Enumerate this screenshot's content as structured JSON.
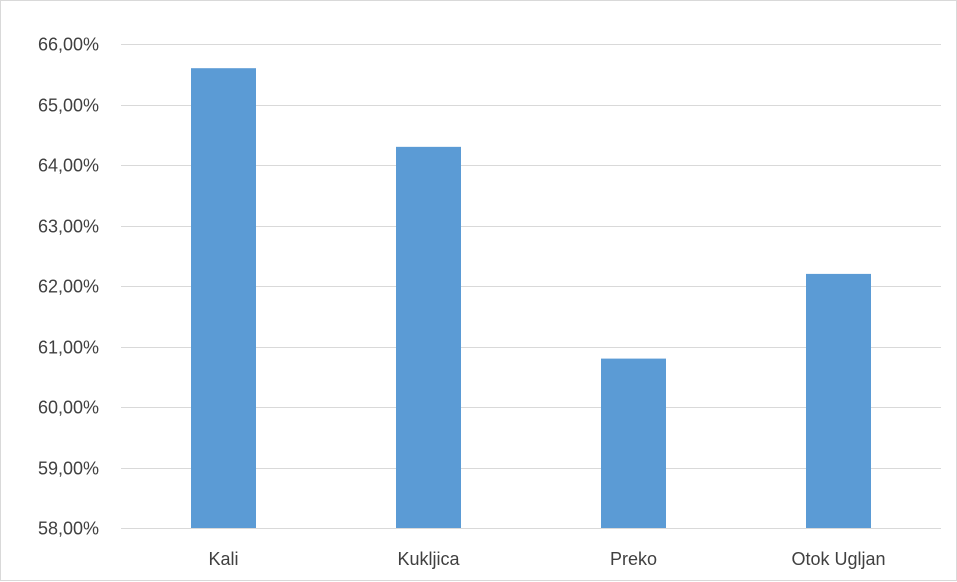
{
  "chart_data": {
    "type": "bar",
    "title": "",
    "xlabel": "",
    "ylabel": "",
    "categories": [
      "Kali",
      "Kukljica",
      "Preko",
      "Otok Ugljan"
    ],
    "values": [
      65.6,
      64.3,
      60.8,
      62.2
    ],
    "unit": "%",
    "ylim": [
      58,
      66
    ],
    "yticks": [
      58,
      59,
      60,
      61,
      62,
      63,
      64,
      65,
      66
    ],
    "ytick_labels": [
      "58,00%",
      "59,00%",
      "60,00%",
      "61,00%",
      "62,00%",
      "63,00%",
      "64,00%",
      "65,00%",
      "66,00%"
    ],
    "grid": true,
    "legend": "none",
    "bar_color": "#5b9bd5",
    "grid_color": "#d9d9d9"
  }
}
